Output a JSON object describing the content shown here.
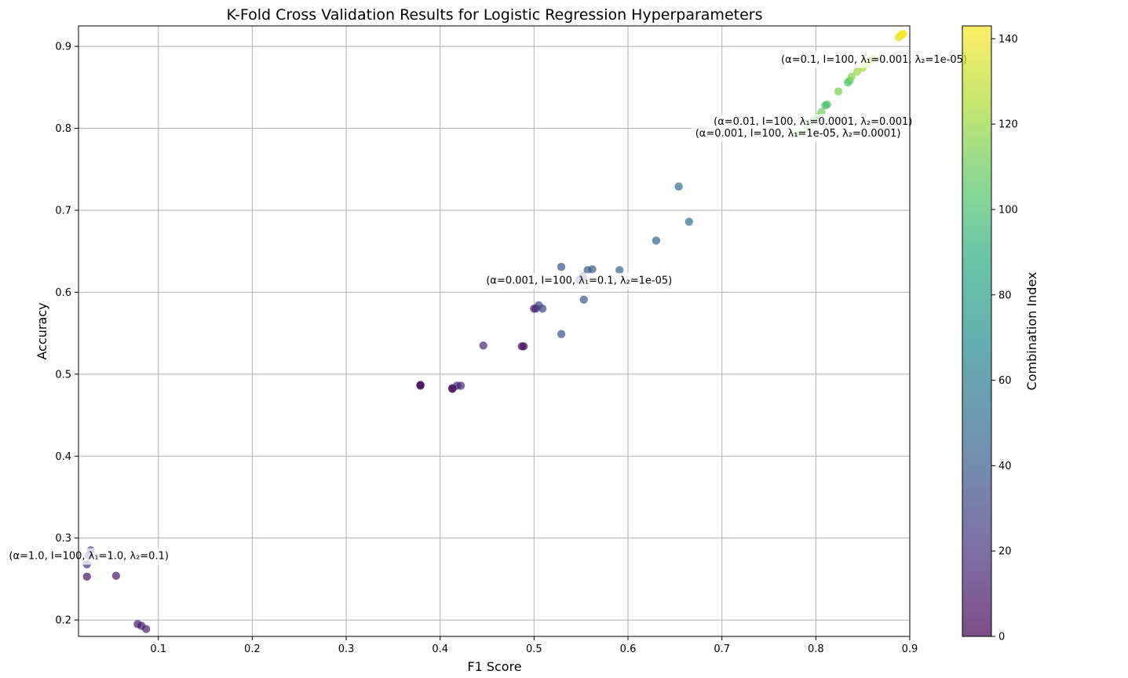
{
  "chart_data": {
    "type": "scatter",
    "title": "K-Fold Cross Validation Results for Logistic Regression Hyperparameters",
    "xlabel": "F1 Score",
    "ylabel": "Accuracy",
    "xlim": [
      0.015,
      0.9
    ],
    "ylim": [
      0.18,
      0.925
    ],
    "xticks": [
      0.1,
      0.2,
      0.3,
      0.4,
      0.5,
      0.6,
      0.7,
      0.8,
      0.9
    ],
    "yticks": [
      0.2,
      0.3,
      0.4,
      0.5,
      0.6,
      0.7,
      0.8,
      0.9
    ],
    "xtick_labels": [
      "0.1",
      "0.2",
      "0.3",
      "0.4",
      "0.5",
      "0.6",
      "0.7",
      "0.8",
      "0.9"
    ],
    "ytick_labels": [
      "0.2",
      "0.3",
      "0.4",
      "0.5",
      "0.6",
      "0.7",
      "0.8",
      "0.9"
    ],
    "grid": true,
    "colormap": "viridis",
    "colorbar": {
      "label": "Combination Index",
      "range": [
        0,
        143
      ],
      "ticks": [
        0,
        20,
        40,
        60,
        80,
        100,
        120,
        140
      ],
      "tick_labels": [
        "0",
        "20",
        "40",
        "60",
        "80",
        "100",
        "120",
        "140"
      ]
    },
    "points": [
      {
        "x": 0.024,
        "y": 0.253,
        "c": 8
      },
      {
        "x": 0.055,
        "y": 0.254,
        "c": 9
      },
      {
        "x": 0.078,
        "y": 0.195,
        "c": 10
      },
      {
        "x": 0.082,
        "y": 0.193,
        "c": 11
      },
      {
        "x": 0.087,
        "y": 0.189,
        "c": 12
      },
      {
        "x": 0.024,
        "y": 0.268,
        "c": 18
      },
      {
        "x": 0.026,
        "y": 0.279,
        "c": 20
      },
      {
        "x": 0.028,
        "y": 0.285,
        "c": 22
      },
      {
        "x": 0.379,
        "y": 0.487,
        "c": 0
      },
      {
        "x": 0.379,
        "y": 0.486,
        "c": 1
      },
      {
        "x": 0.413,
        "y": 0.482,
        "c": 3
      },
      {
        "x": 0.413,
        "y": 0.483,
        "c": 4
      },
      {
        "x": 0.418,
        "y": 0.486,
        "c": 12
      },
      {
        "x": 0.422,
        "y": 0.486,
        "c": 14
      },
      {
        "x": 0.446,
        "y": 0.535,
        "c": 16
      },
      {
        "x": 0.487,
        "y": 0.534,
        "c": 5
      },
      {
        "x": 0.489,
        "y": 0.534,
        "c": 7
      },
      {
        "x": 0.5,
        "y": 0.58,
        "c": 13
      },
      {
        "x": 0.502,
        "y": 0.58,
        "c": 15
      },
      {
        "x": 0.505,
        "y": 0.584,
        "c": 26
      },
      {
        "x": 0.509,
        "y": 0.58,
        "c": 28
      },
      {
        "x": 0.529,
        "y": 0.549,
        "c": 35
      },
      {
        "x": 0.529,
        "y": 0.631,
        "c": 36
      },
      {
        "x": 0.548,
        "y": 0.615,
        "c": 30
      },
      {
        "x": 0.552,
        "y": 0.619,
        "c": 32
      },
      {
        "x": 0.553,
        "y": 0.591,
        "c": 38
      },
      {
        "x": 0.557,
        "y": 0.627,
        "c": 40
      },
      {
        "x": 0.562,
        "y": 0.628,
        "c": 42
      },
      {
        "x": 0.591,
        "y": 0.627,
        "c": 44
      },
      {
        "x": 0.63,
        "y": 0.663,
        "c": 46
      },
      {
        "x": 0.654,
        "y": 0.729,
        "c": 48
      },
      {
        "x": 0.665,
        "y": 0.686,
        "c": 52
      },
      {
        "x": 0.781,
        "y": 0.795,
        "c": 104
      },
      {
        "x": 0.79,
        "y": 0.8,
        "c": 106
      },
      {
        "x": 0.797,
        "y": 0.809,
        "c": 108
      },
      {
        "x": 0.802,
        "y": 0.814,
        "c": 110
      },
      {
        "x": 0.806,
        "y": 0.82,
        "c": 112
      },
      {
        "x": 0.81,
        "y": 0.828,
        "c": 100
      },
      {
        "x": 0.812,
        "y": 0.829,
        "c": 102
      },
      {
        "x": 0.824,
        "y": 0.845,
        "c": 114
      },
      {
        "x": 0.834,
        "y": 0.856,
        "c": 104
      },
      {
        "x": 0.836,
        "y": 0.858,
        "c": 105
      },
      {
        "x": 0.838,
        "y": 0.863,
        "c": 116
      },
      {
        "x": 0.844,
        "y": 0.869,
        "c": 120
      },
      {
        "x": 0.85,
        "y": 0.874,
        "c": 122
      },
      {
        "x": 0.855,
        "y": 0.879,
        "c": 124
      },
      {
        "x": 0.859,
        "y": 0.883,
        "c": 126
      },
      {
        "x": 0.862,
        "y": 0.885,
        "c": 128
      },
      {
        "x": 0.888,
        "y": 0.911,
        "c": 136
      },
      {
        "x": 0.89,
        "y": 0.913,
        "c": 138
      },
      {
        "x": 0.892,
        "y": 0.915,
        "c": 140
      },
      {
        "x": 0.893,
        "y": 0.915,
        "c": 142
      }
    ],
    "annotations": [
      {
        "text": "(α=0.1, I=100, λ₁=0.001, λ₂=1e-05)",
        "x": 0.862,
        "y": 0.885
      },
      {
        "text": "(α=0.01, I=100, λ₁=0.0001, λ₂=0.001)",
        "x": 0.797,
        "y": 0.809
      },
      {
        "text": "(α=0.001, I=100, λ₁=1e-05, λ₂=0.0001)",
        "x": 0.781,
        "y": 0.795
      },
      {
        "text": "(α=0.001, I=100, λ₁=0.1, λ₂=1e-05)",
        "x": 0.548,
        "y": 0.615
      },
      {
        "text": "(α=1.0, I=100, λ₁=1.0, λ₂=0.1)",
        "x": 0.026,
        "y": 0.279
      }
    ]
  }
}
